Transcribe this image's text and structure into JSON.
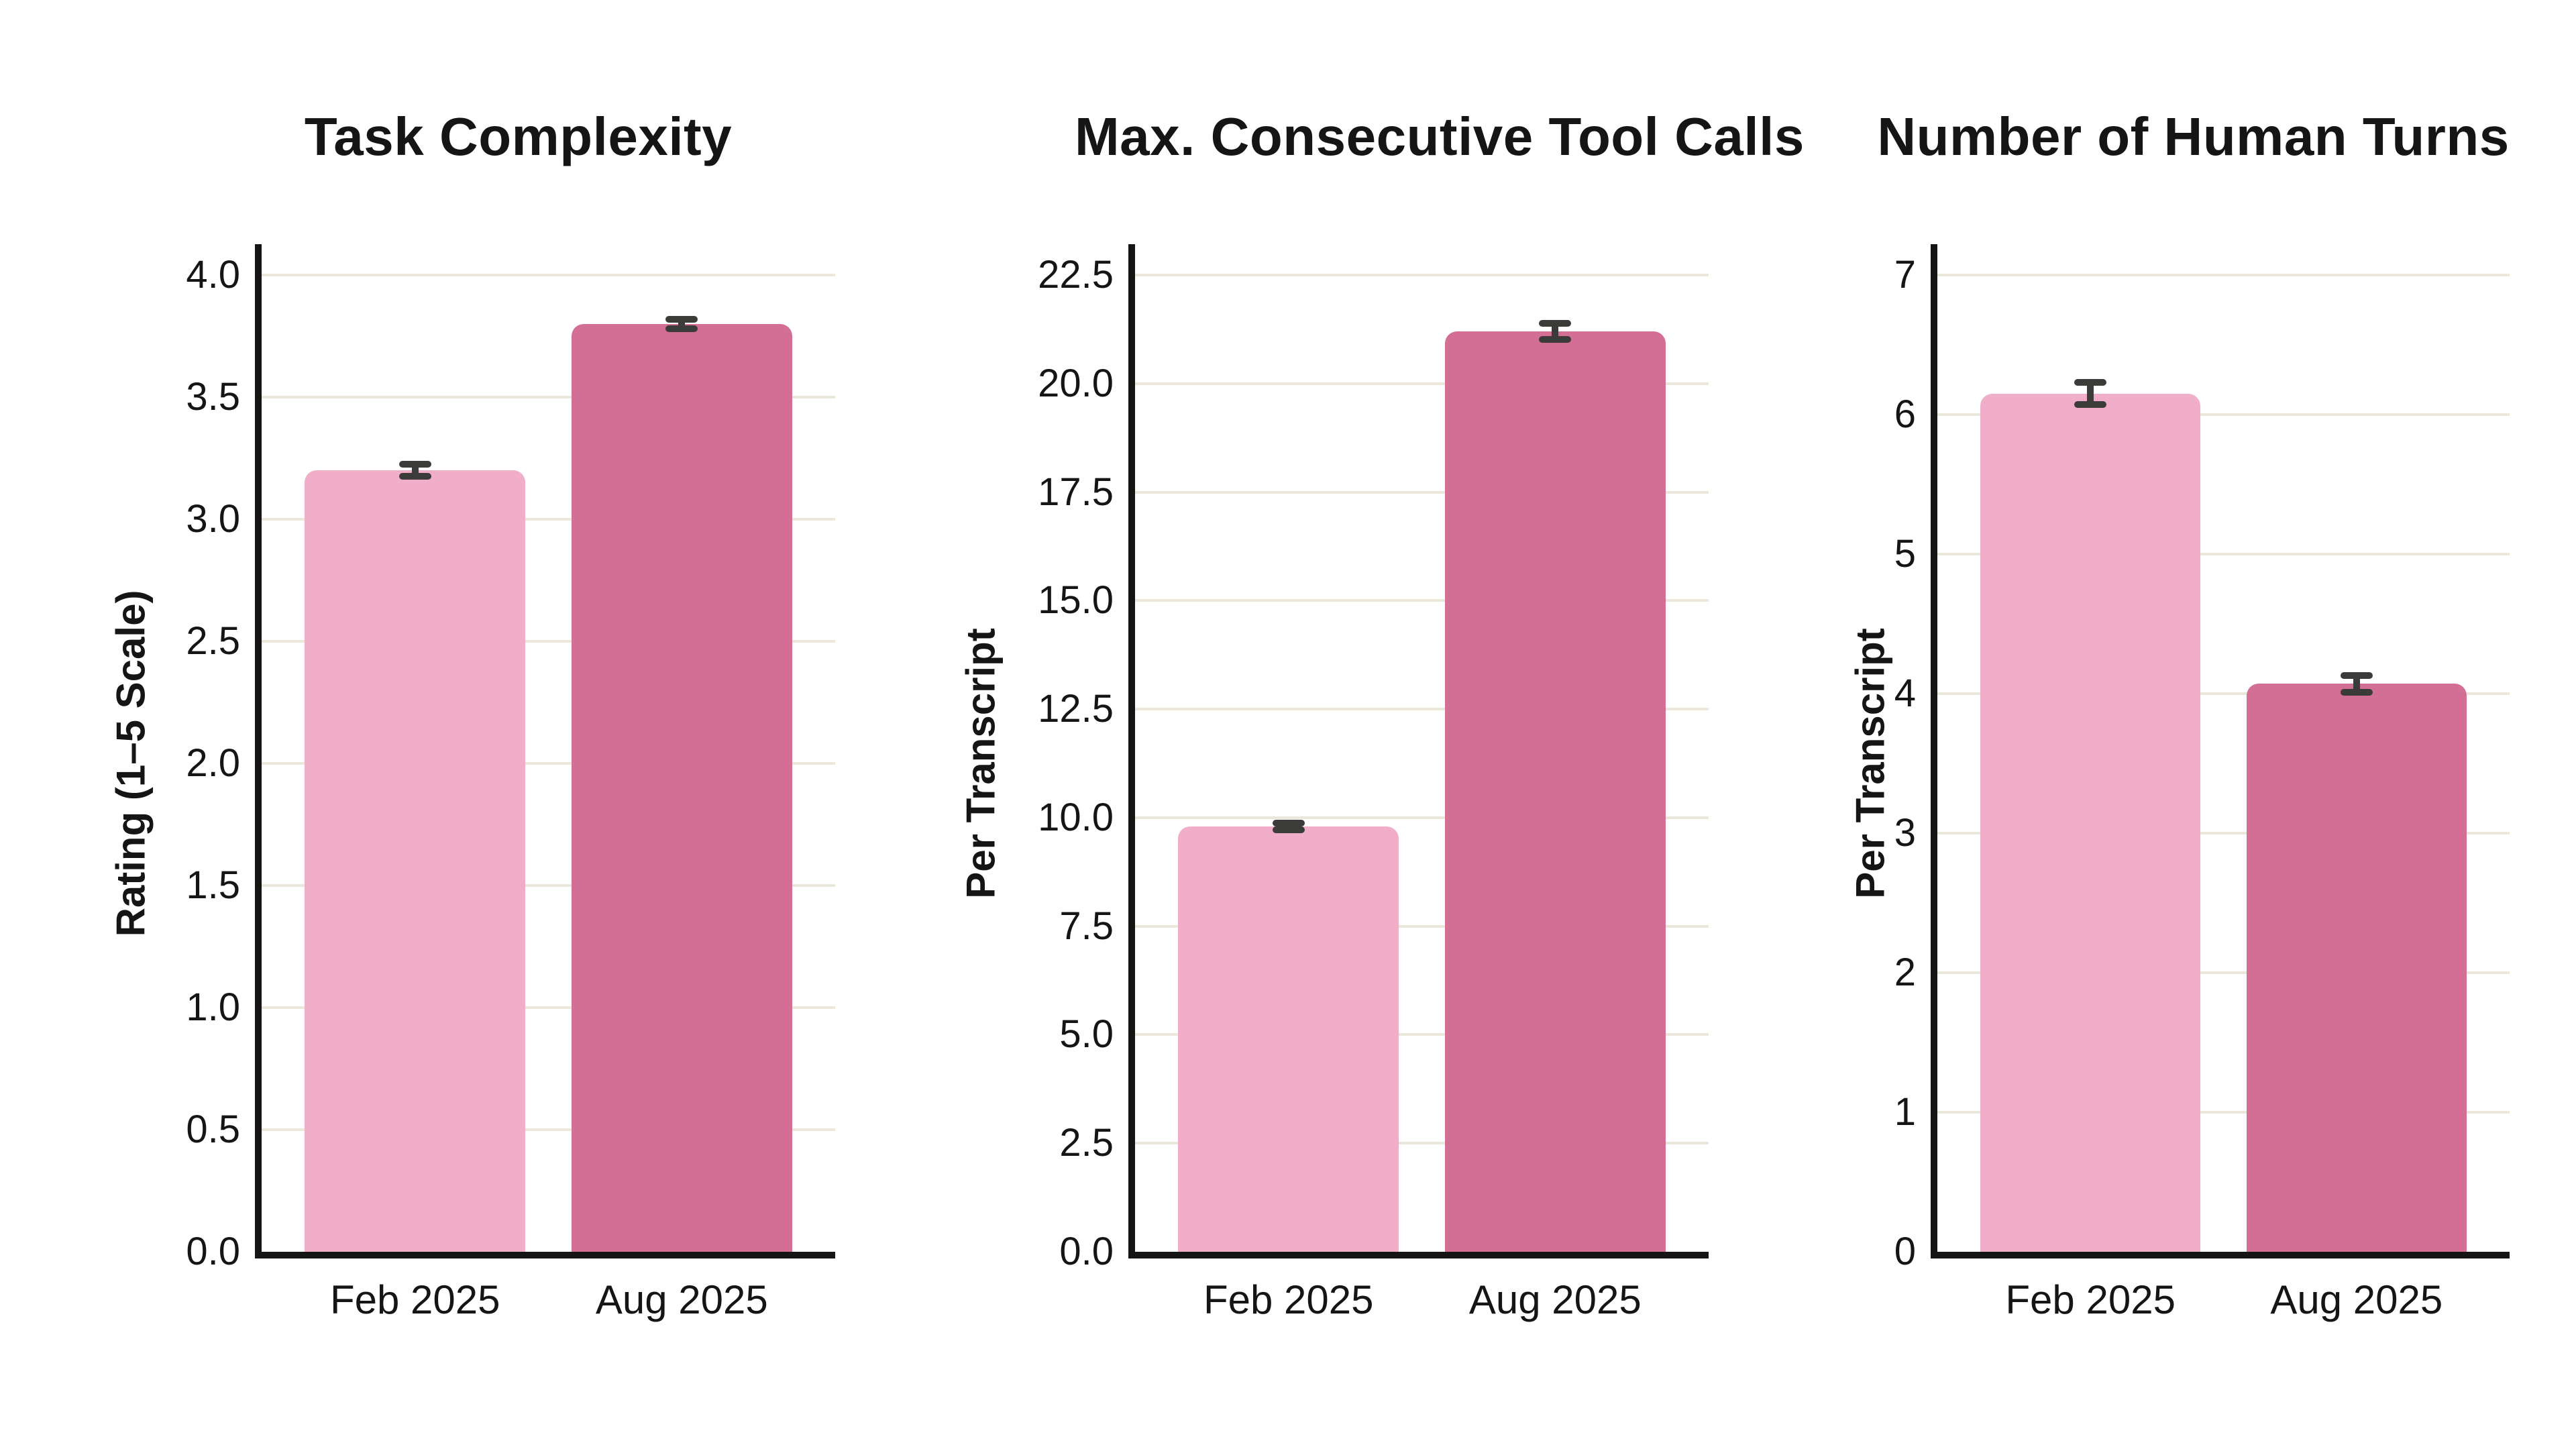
{
  "figure": {
    "background": "#ffffff",
    "bar_colors": [
      "#F1AEC8",
      "#D36F95"
    ],
    "grid_color": "#EBE7DB",
    "axis_color": "#151515",
    "error_bar_color": "#3B3B39",
    "text_color": "#151515"
  },
  "chart_data": [
    {
      "type": "bar",
      "title": "Task Complexity",
      "ylabel": "Rating (1–5 Scale)",
      "categories": [
        "Feb 2025",
        "Aug 2025"
      ],
      "values": [
        3.2,
        3.8
      ],
      "errors": [
        0.025,
        0.02
      ],
      "ylim": [
        0,
        4.0
      ],
      "ytick_step": 0.5,
      "ytick_decimals": 1,
      "grid": true,
      "legend": "none"
    },
    {
      "type": "bar",
      "title": "Max. Consecutive Tool Calls",
      "ylabel": "Per Transcript",
      "categories": [
        "Feb 2025",
        "Aug 2025"
      ],
      "values": [
        9.8,
        21.2
      ],
      "errors": [
        0.08,
        0.18
      ],
      "ylim": [
        0,
        22.5
      ],
      "ytick_step": 2.5,
      "ytick_decimals": 1,
      "grid": true,
      "legend": "none"
    },
    {
      "type": "bar",
      "title": "Number of Human Turns",
      "ylabel": "Per Transcript",
      "categories": [
        "Feb 2025",
        "Aug 2025"
      ],
      "values": [
        6.15,
        4.07
      ],
      "errors": [
        0.08,
        0.06
      ],
      "ylim": [
        0,
        7
      ],
      "ytick_step": 1,
      "ytick_decimals": 0,
      "grid": true,
      "legend": "none"
    }
  ]
}
